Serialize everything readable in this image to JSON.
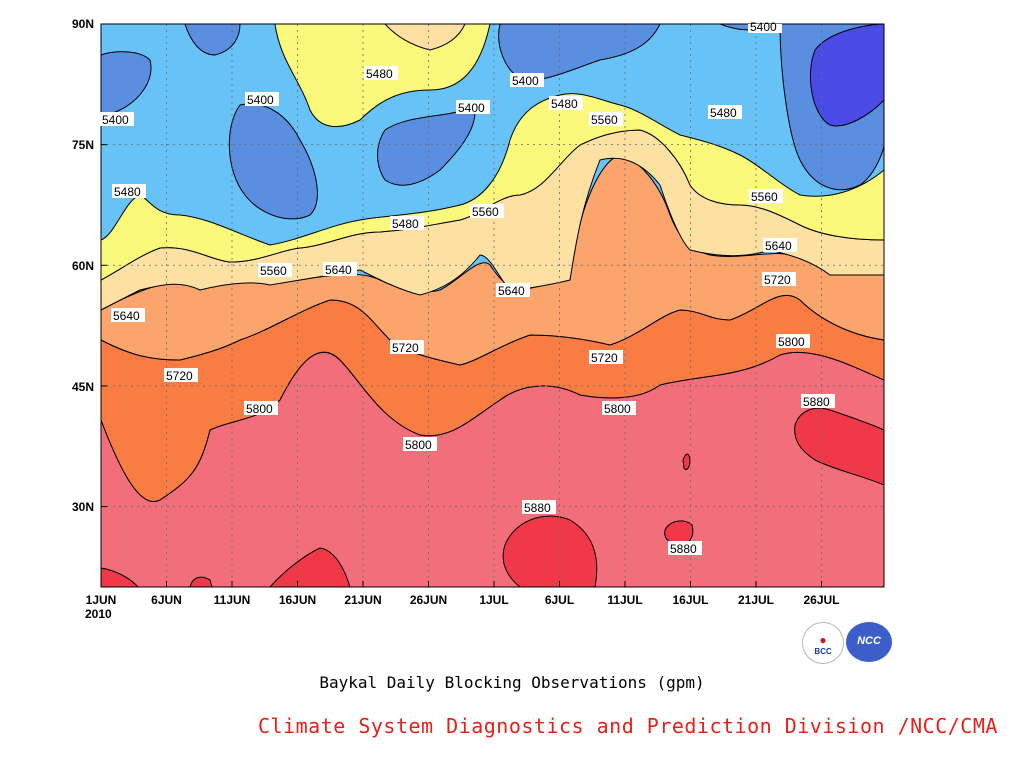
{
  "chart_data": {
    "type": "contour-filled",
    "title": "Baykal Daily Blocking Observations (gpm)",
    "credit": "Climate System Diagnostics and Prediction Division /NCC/CMA",
    "year_label": "2010",
    "x_ticks": [
      "1JUN",
      "6JUN",
      "11JUN",
      "16JUN",
      "21JUN",
      "26JUN",
      "1JUL",
      "6JUL",
      "11JUL",
      "16JUL",
      "21JUL",
      "26JUL"
    ],
    "y_ticks": [
      "30N",
      "45N",
      "60N",
      "75N",
      "90N"
    ],
    "y_range_deg": [
      20,
      90
    ],
    "x_range_days": [
      0,
      60
    ],
    "levels": [
      5400,
      5480,
      5560,
      5640,
      5720,
      5800,
      5880
    ],
    "colors": [
      "#4a4ae6",
      "#5a8ee0",
      "#67c3f7",
      "#fbf97c",
      "#fde1a2",
      "#fba46c",
      "#f97c43",
      "#f26e7a",
      "#f03848"
    ],
    "contour_labels": [
      "5400",
      "5480",
      "5560",
      "5640",
      "5720",
      "5800",
      "5880"
    ],
    "logos": [
      "BCC",
      "NCC"
    ]
  }
}
